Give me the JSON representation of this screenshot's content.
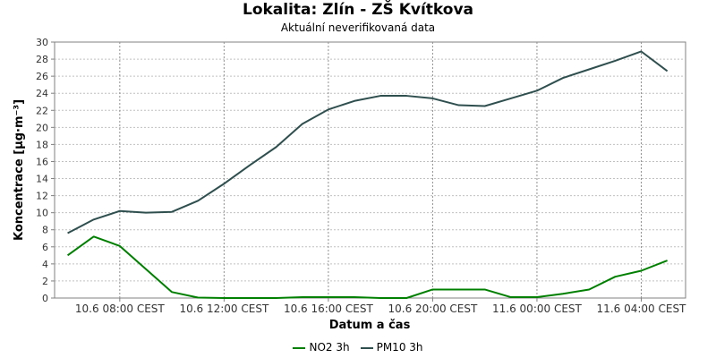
{
  "chart_data": {
    "type": "line",
    "title": "Lokalita: Zlín - ZŠ Kvítkova",
    "subtitle": "Aktuální neverifikovaná data",
    "xlabel": "Datum a čas",
    "ylabel": "Koncentrace [µg·m⁻³]",
    "ylim": [
      0,
      30
    ],
    "yticks": [
      0,
      2,
      4,
      6,
      8,
      10,
      12,
      14,
      16,
      18,
      20,
      22,
      24,
      26,
      28,
      30
    ],
    "xlim": [
      6.5,
      30.7
    ],
    "x": [
      7,
      8,
      9,
      10,
      11,
      12,
      13,
      14,
      15,
      16,
      17,
      18,
      19,
      20,
      21,
      22,
      23,
      24,
      25,
      26,
      27,
      28,
      29,
      30
    ],
    "xticks": [
      {
        "x": 9,
        "label": "10.6 08:00 CEST"
      },
      {
        "x": 13,
        "label": "10.6 12:00 CEST"
      },
      {
        "x": 17,
        "label": "10.6 16:00 CEST"
      },
      {
        "x": 21,
        "label": "10.6 20:00 CEST"
      },
      {
        "x": 25,
        "label": "11.6 00:00 CEST"
      },
      {
        "x": 29,
        "label": "11.6 04:00 CEST"
      }
    ],
    "grid": true,
    "legend_position": "bottom",
    "series": [
      {
        "name": "NO2 3h",
        "color": "#008000",
        "values": [
          5.0,
          7.2,
          6.1,
          3.4,
          0.7,
          0.05,
          0.0,
          0.0,
          0.0,
          0.1,
          0.1,
          0.1,
          0.0,
          0.0,
          1.0,
          1.0,
          1.0,
          0.1,
          0.1,
          0.5,
          1.0,
          2.5,
          3.2,
          4.4
        ]
      },
      {
        "name": "PM10 3h",
        "color": "#2f4f4f",
        "values": [
          7.6,
          9.2,
          10.2,
          10.0,
          10.1,
          11.4,
          13.4,
          15.6,
          17.7,
          20.4,
          22.1,
          23.1,
          23.7,
          23.7,
          23.4,
          22.6,
          22.5,
          23.4,
          24.3,
          25.8,
          26.8,
          27.8,
          28.9,
          26.6
        ]
      }
    ]
  }
}
